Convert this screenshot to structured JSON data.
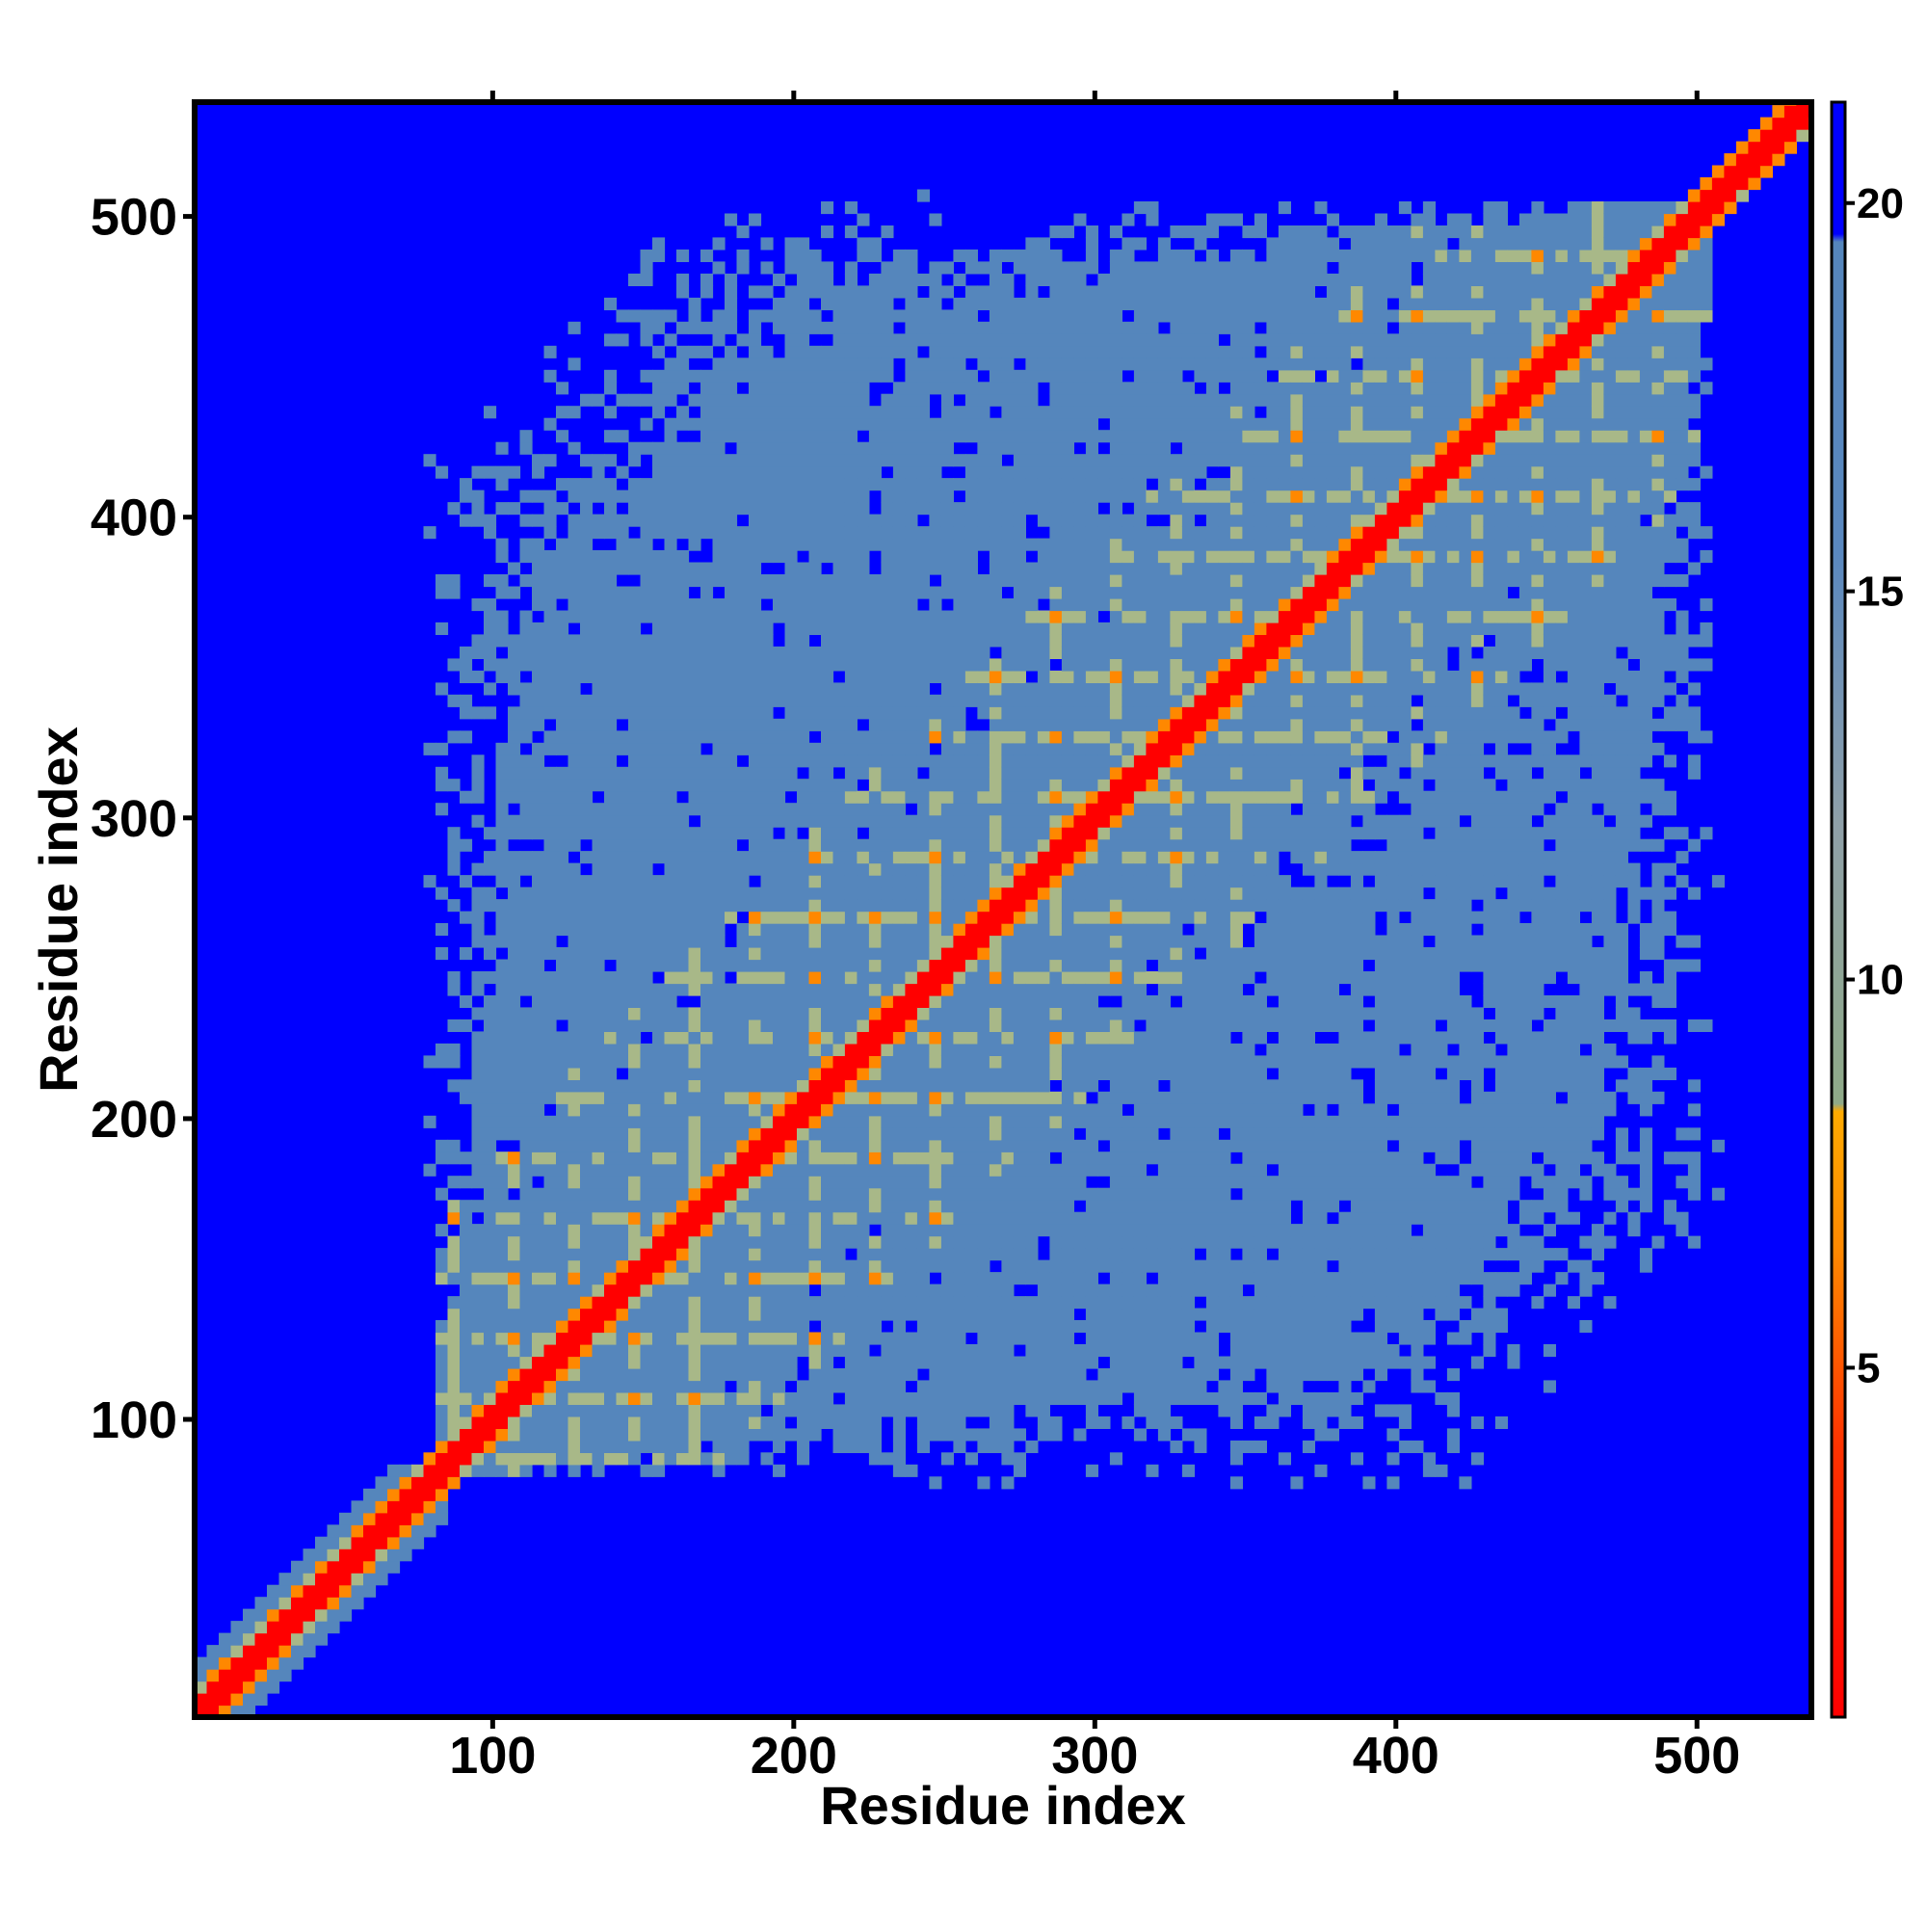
{
  "chart_data": {
    "type": "heatmap",
    "title": "",
    "xlabel": "Residue index",
    "ylabel": "Residue index",
    "xlim": [
      1,
      538
    ],
    "ylim": [
      1,
      538
    ],
    "x_ticks": [
      100,
      200,
      300,
      400,
      500
    ],
    "y_ticks": [
      100,
      200,
      300,
      400,
      500
    ],
    "colorbar": {
      "range": [
        0.5,
        21.3
      ],
      "ticks": [
        5,
        10,
        15,
        20
      ],
      "stops": [
        {
          "value": 0.5,
          "color": "#ff0000"
        },
        {
          "value": 4,
          "color": "#ff3300"
        },
        {
          "value": 6.5,
          "color": "#ff8800"
        },
        {
          "value": 8.3,
          "color": "#ffaa00"
        },
        {
          "value": 8.4,
          "color": "#8faa88"
        },
        {
          "value": 12,
          "color": "#8fa0a8"
        },
        {
          "value": 15.5,
          "color": "#5a88bf"
        },
        {
          "value": 19.5,
          "color": "#5586bc"
        },
        {
          "value": 19.6,
          "color": "#0000ff"
        },
        {
          "value": 21.3,
          "color": "#0000ff"
        }
      ]
    },
    "colors": {
      "background": "#0000ff",
      "mid": "#5586bc",
      "near": "#a8b888",
      "contact": "#ff8800",
      "diagonal": "#ff0000"
    },
    "structure": {
      "n_residues": 538,
      "compact_region_start": 78,
      "compact_region_end": 505,
      "repeat_period": 20,
      "first_repeat_start": 85
    }
  }
}
